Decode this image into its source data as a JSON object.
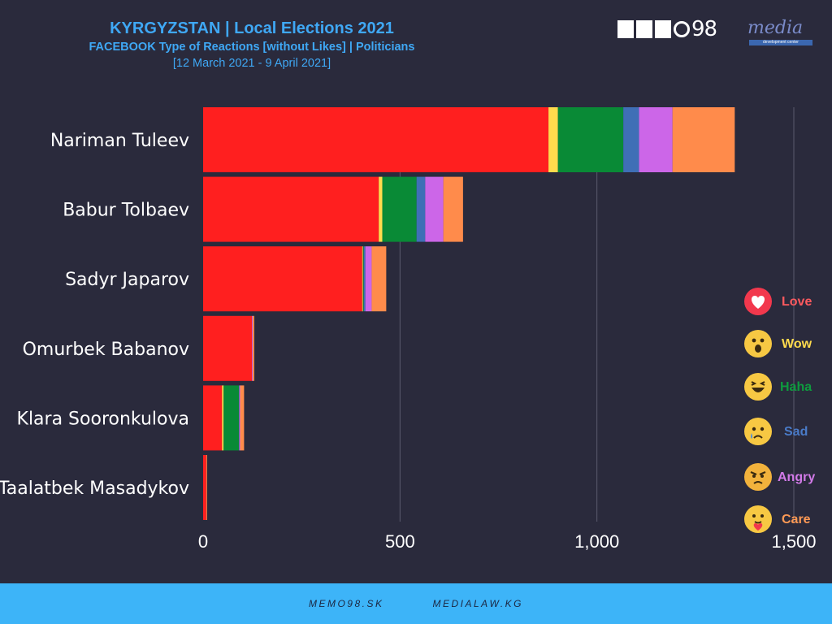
{
  "header": {
    "title": "KYRGYZSTAN | Local Elections 2021",
    "subtitle": "FACEBOOK Type of Reactions [without Likes] | Politicians",
    "daterange": "[12 March 2021 - 9 April 2021]"
  },
  "logos": {
    "memo": "MEMO98",
    "memo_suffix": "98",
    "media": "media",
    "media_sub": "development center"
  },
  "footer": {
    "link1": "MEMO98.SK",
    "link2": "MEDIALAW.KG"
  },
  "colors": {
    "love": "#ff1f1f",
    "wow": "#ffdb4d",
    "haha": "#098a36",
    "sad": "#3f6fb6",
    "angry": "#cc66e8",
    "care": "#ff8b4b",
    "background": "#2a2a3c",
    "footer": "#3db4f8"
  },
  "legend": [
    {
      "label": "Love",
      "icon": "love-heart-icon",
      "color": "#ff5a5f"
    },
    {
      "label": "Wow",
      "icon": "wow-face-icon",
      "color": "#ffdb4d"
    },
    {
      "label": "Haha",
      "icon": "haha-face-icon",
      "color": "#0e9a3e"
    },
    {
      "label": "Sad",
      "icon": "sad-face-icon",
      "color": "#4a7bc8"
    },
    {
      "label": "Angry",
      "icon": "angry-face-icon",
      "color": "#d27ae8"
    },
    {
      "label": "Care",
      "icon": "care-face-icon",
      "color": "#ff9a55"
    }
  ],
  "chart_data": {
    "type": "bar",
    "orientation": "horizontal",
    "stacked": true,
    "categories": [
      "Nariman Tuleev",
      "Babur Tolbaev",
      "Sadyr Japarov ",
      "Omurbek Babanov",
      "Klara Sooronkulova",
      "Taalatbek Masadykov"
    ],
    "series": [
      {
        "name": "Love",
        "values": [
          877,
          446,
          404,
          124,
          48,
          8
        ]
      },
      {
        "name": "Wow",
        "values": [
          24,
          9,
          2,
          0,
          4,
          0
        ]
      },
      {
        "name": "Haha",
        "values": [
          166,
          87,
          2,
          0,
          39,
          0
        ]
      },
      {
        "name": "Sad",
        "values": [
          40,
          22,
          4,
          0,
          1,
          0
        ]
      },
      {
        "name": "Angry",
        "values": [
          85,
          46,
          16,
          2,
          2,
          0
        ]
      },
      {
        "name": "Care",
        "values": [
          158,
          50,
          37,
          4,
          10,
          2
        ]
      }
    ],
    "xticks": [
      "0",
      "500",
      "1,000",
      "1,500"
    ],
    "xlim": [
      0,
      1500
    ],
    "grid": true,
    "legend": "right"
  }
}
